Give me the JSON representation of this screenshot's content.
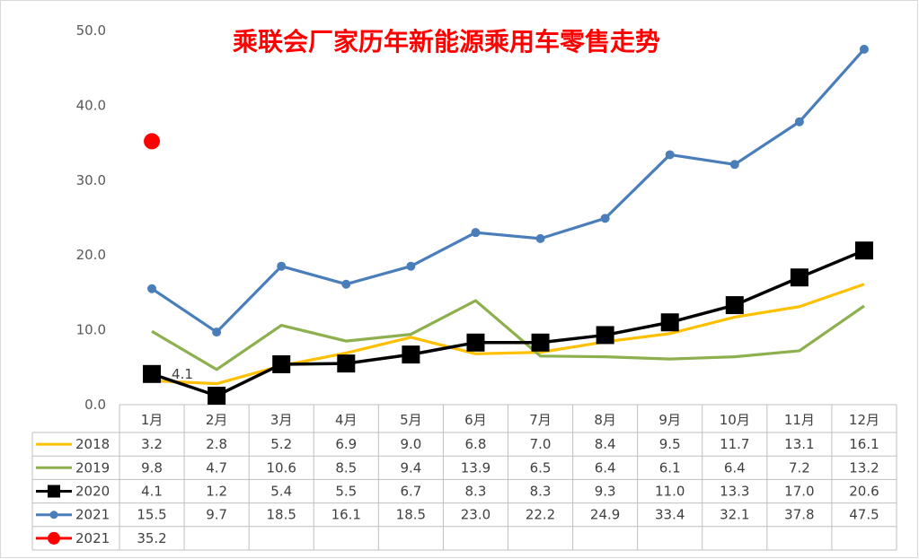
{
  "chart_data": {
    "type": "line",
    "title": "乘联会厂家历年新能源乘用车零售走势",
    "categories": [
      "1月",
      "2月",
      "3月",
      "4月",
      "5月",
      "6月",
      "7月",
      "8月",
      "9月",
      "10月",
      "11月",
      "12月"
    ],
    "ylim": [
      0,
      50
    ],
    "yticks": [
      "0.0",
      "10.0",
      "20.0",
      "30.0",
      "40.0",
      "50.0"
    ],
    "grid": false,
    "legend": "data-table",
    "series": [
      {
        "name": "2018",
        "color": "#FFC000",
        "marker": "none",
        "values": [
          3.2,
          2.8,
          5.2,
          6.9,
          9.0,
          6.8,
          7.0,
          8.4,
          9.5,
          11.7,
          13.1,
          16.1
        ],
        "labels": [
          "3.2",
          "2.8",
          "5.2",
          "6.9",
          "9.0",
          "6.8",
          "7.0",
          "8.4",
          "9.5",
          "11.7",
          "13.1",
          "16.1"
        ]
      },
      {
        "name": "2019",
        "color": "#8DB04E",
        "marker": "none",
        "values": [
          9.8,
          4.7,
          10.6,
          8.5,
          9.4,
          13.9,
          6.5,
          6.4,
          6.1,
          6.4,
          7.2,
          13.2
        ],
        "labels": [
          "9.8",
          "4.7",
          "10.6",
          "8.5",
          "9.4",
          "13.9",
          "6.5",
          "6.4",
          "6.1",
          "6.4",
          "7.2",
          "13.2"
        ]
      },
      {
        "name": "2020",
        "color": "#000000",
        "marker": "square",
        "values": [
          4.1,
          1.2,
          5.4,
          5.5,
          6.7,
          8.3,
          8.3,
          9.3,
          11.0,
          13.3,
          17.0,
          20.6
        ],
        "labels": [
          "4.1",
          "1.2",
          "5.4",
          "5.5",
          "6.7",
          "8.3",
          "8.3",
          "9.3",
          "11.0",
          "13.3",
          "17.0",
          "20.6"
        ]
      },
      {
        "name": "2021",
        "color": "#4A7EBB",
        "marker": "circle",
        "values": [
          15.5,
          9.7,
          18.5,
          16.1,
          18.5,
          23.0,
          22.2,
          24.9,
          33.4,
          32.1,
          37.8,
          47.5
        ],
        "labels": [
          "15.5",
          "9.7",
          "18.5",
          "16.1",
          "18.5",
          "23.0",
          "22.2",
          "24.9",
          "33.4",
          "32.1",
          "37.8",
          "47.5"
        ]
      },
      {
        "name": "2021",
        "color": "#FF0000",
        "marker": "circle-large",
        "values": [
          35.2,
          null,
          null,
          null,
          null,
          null,
          null,
          null,
          null,
          null,
          null,
          null
        ],
        "labels": [
          "35.2",
          "",
          "",
          "",
          "",
          "",
          "",
          "",
          "",
          "",
          "",
          ""
        ]
      }
    ],
    "annotations": [
      {
        "series": 2,
        "index": 0,
        "text": "4.1"
      }
    ]
  }
}
